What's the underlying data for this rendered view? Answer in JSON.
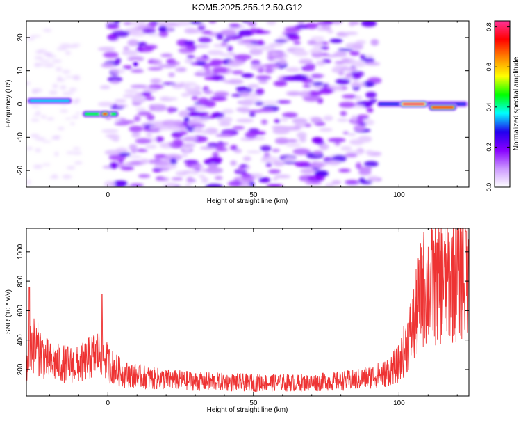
{
  "title": "KOM5.2025.255.12.50.G12",
  "colors": {
    "snr_line": "#ee3333",
    "frame": "#000000",
    "colorbar_stops": [
      "#ffffff",
      "#cc99ff",
      "#8800ff",
      "#2200ee",
      "#00ffff",
      "#00ff00",
      "#ffff00",
      "#ff8800",
      "#ff0000",
      "#ff3399"
    ]
  },
  "chart_data": [
    {
      "type": "heatmap",
      "xlabel": "Height of straight line (km)",
      "ylabel": "Frequency (Hz)",
      "xlim": [
        -28,
        124
      ],
      "ylim": [
        -25,
        25
      ],
      "x_ticks": [
        0,
        50,
        100
      ],
      "y_ticks": [
        -20,
        -10,
        0,
        10,
        20
      ],
      "x_tick_labels": [
        "0",
        "50",
        "100"
      ],
      "y_tick_labels": [
        "-20",
        "-10",
        "0",
        "10",
        "20"
      ],
      "colorbar": {
        "label": "Normalized spectral amplitude",
        "range": [
          0,
          0.83
        ],
        "ticks": [
          0.0,
          0.2,
          0.4,
          0.6,
          0.8
        ],
        "tick_labels": [
          "0.0",
          "0.2",
          "0.4",
          "0.6",
          "0.8"
        ]
      },
      "features": [
        {
          "x_range": [
            -28,
            -12
          ],
          "freq": 1,
          "peak": 0.35
        },
        {
          "x_range": [
            -9,
            4
          ],
          "freq": -3,
          "peak": 0.45
        },
        {
          "x_range": [
            -3,
            1
          ],
          "freq": -3,
          "peak": 0.7
        },
        {
          "x_range": [
            8,
            11
          ],
          "freq": 12,
          "peak": 0.25
        },
        {
          "x_range": [
            92,
            124
          ],
          "freq": 0,
          "peak": 0.3
        },
        {
          "x_range": [
            100,
            110
          ],
          "freq": 0,
          "peak": 0.8
        },
        {
          "x_range": [
            110,
            120
          ],
          "freq": -1,
          "peak": 0.7
        }
      ],
      "background_noise": {
        "x_range": [
          -1,
          92
        ],
        "freq_range": [
          -25,
          25
        ],
        "level": "0.05-0.2"
      }
    },
    {
      "type": "line",
      "xlabel": "Height of straight line (km)",
      "ylabel": "SNR (10 * v/v)",
      "xlim": [
        -28,
        124
      ],
      "ylim": [
        20,
        1160
      ],
      "x_ticks": [
        0,
        50,
        100
      ],
      "y_ticks": [
        200,
        400,
        600,
        800,
        1000
      ],
      "x_tick_labels": [
        "0",
        "50",
        "100"
      ],
      "y_tick_labels": [
        "200",
        "400",
        "600",
        "800",
        "1000"
      ],
      "trend": [
        {
          "x": -28,
          "y": 240
        },
        {
          "x": -26,
          "y": 380
        },
        {
          "x": -20,
          "y": 250
        },
        {
          "x": -10,
          "y": 230
        },
        {
          "x": -2,
          "y": 330
        },
        {
          "x": 0,
          "y": 240
        },
        {
          "x": 5,
          "y": 170
        },
        {
          "x": 15,
          "y": 140
        },
        {
          "x": 30,
          "y": 120
        },
        {
          "x": 50,
          "y": 110
        },
        {
          "x": 70,
          "y": 110
        },
        {
          "x": 85,
          "y": 130
        },
        {
          "x": 95,
          "y": 170
        },
        {
          "x": 100,
          "y": 240
        },
        {
          "x": 105,
          "y": 500
        },
        {
          "x": 108,
          "y": 750
        },
        {
          "x": 115,
          "y": 800
        },
        {
          "x": 120,
          "y": 830
        },
        {
          "x": 124,
          "y": 920
        }
      ],
      "spikes": [
        {
          "x": -27,
          "y": 760
        },
        {
          "x": -2,
          "y": 710
        },
        {
          "x": 113,
          "y": 1060
        },
        {
          "x": 120,
          "y": 1150
        },
        {
          "x": 123,
          "y": 1140
        }
      ]
    }
  ]
}
